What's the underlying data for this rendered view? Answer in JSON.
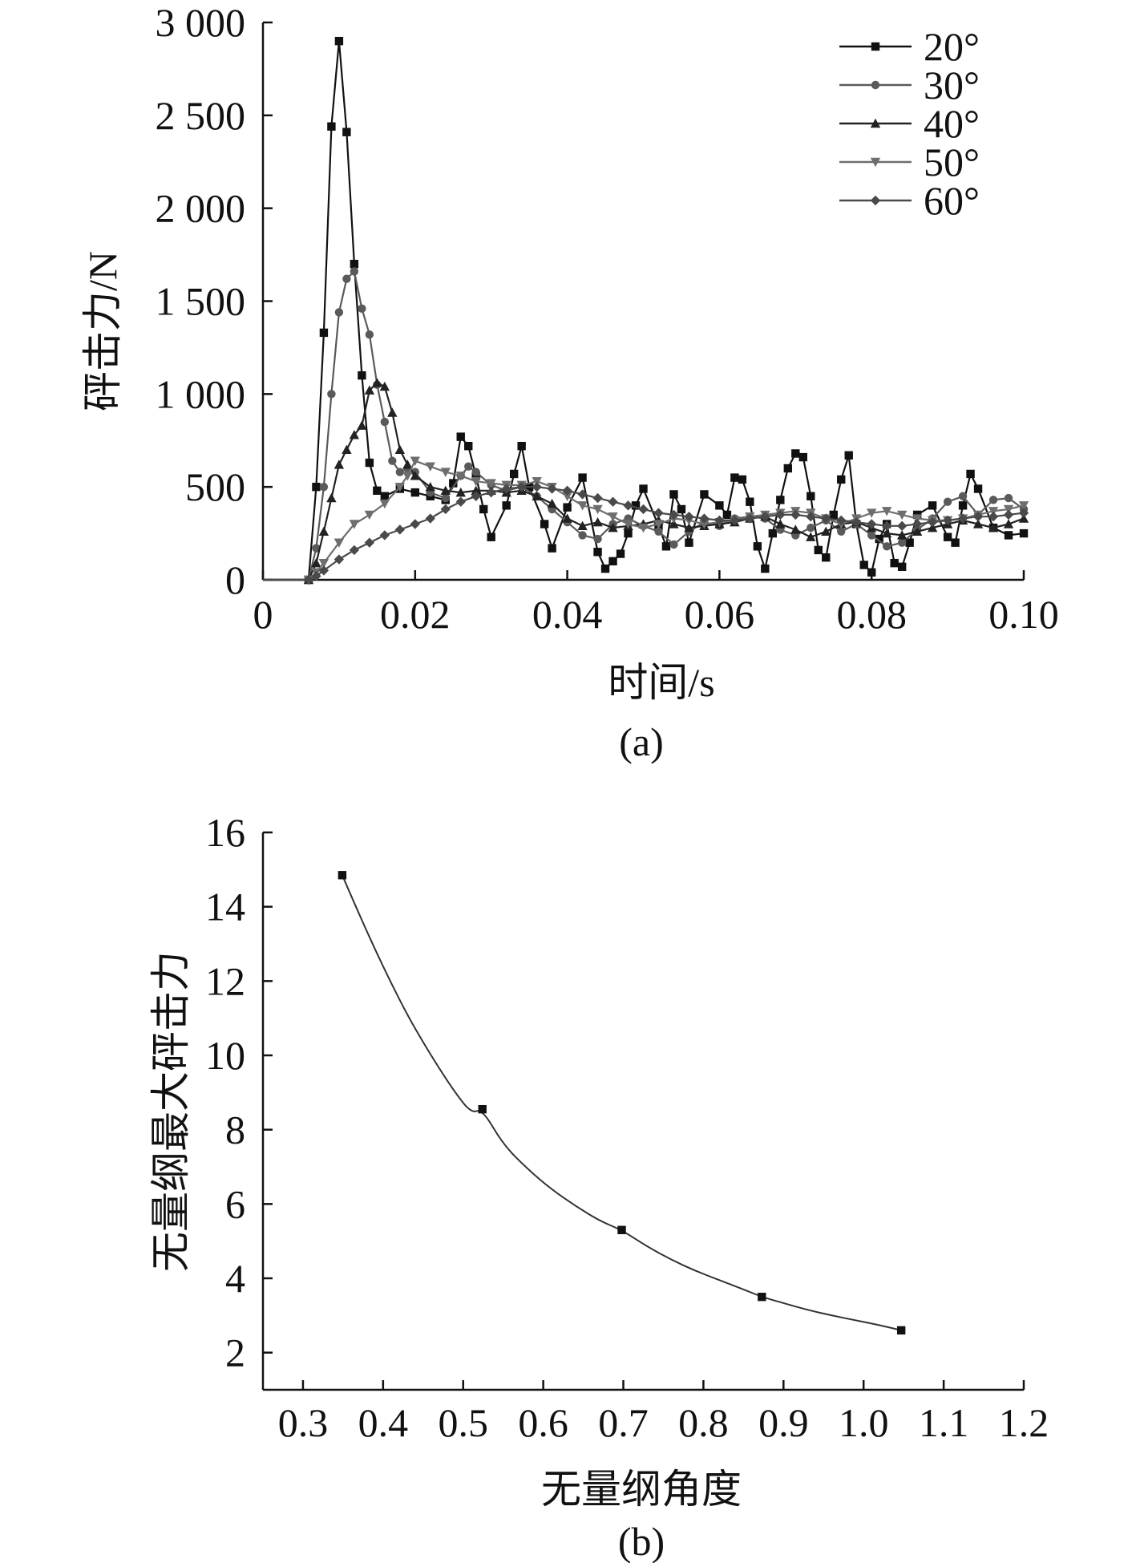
{
  "figure": {
    "panels": [
      {
        "id": "a",
        "panel_label": "(a)",
        "chart_data": {
          "type": "line",
          "xlabel": "时间/s",
          "ylabel": "砰击力/N",
          "xlim": [
            0,
            0.1
          ],
          "ylim": [
            0,
            3000
          ],
          "x_ticks": [
            "0",
            "0.02",
            "0.04",
            "0.06",
            "0.08",
            "0.10"
          ],
          "x_tick_values": [
            0,
            0.02,
            0.04,
            0.06,
            0.08,
            0.1
          ],
          "y_ticks": [
            "0",
            "500",
            "1 000",
            "1 500",
            "2 000",
            "2 500",
            "3 000"
          ],
          "y_tick_values": [
            0,
            500,
            1000,
            1500,
            2000,
            2500,
            3000
          ],
          "grid": false,
          "legend_position": "top-right",
          "series": [
            {
              "name": "20°",
              "marker": "square",
              "color": "#111111",
              "x": [
                0,
                0.002,
                0.004,
                0.006,
                0.007,
                0.008,
                0.009,
                0.01,
                0.011,
                0.012,
                0.013,
                0.014,
                0.015,
                0.016,
                0.018,
                0.02,
                0.022,
                0.024,
                0.025,
                0.026,
                0.027,
                0.028,
                0.029,
                0.03,
                0.032,
                0.033,
                0.034,
                0.035,
                0.037,
                0.038,
                0.04,
                0.042,
                0.044,
                0.045,
                0.046,
                0.047,
                0.048,
                0.049,
                0.05,
                0.052,
                0.053,
                0.054,
                0.055,
                0.056,
                0.058,
                0.06,
                0.061,
                0.062,
                0.063,
                0.064,
                0.065,
                0.066,
                0.067,
                0.068,
                0.069,
                0.07,
                0.071,
                0.072,
                0.073,
                0.074,
                0.075,
                0.076,
                0.077,
                0.078,
                0.079,
                0.08,
                0.081,
                0.082,
                0.083,
                0.084,
                0.085,
                0.086,
                0.088,
                0.09,
                0.091,
                0.092,
                0.093,
                0.094,
                0.096,
                0.098,
                0.1
              ],
              "y": [
                0,
                0,
                0,
                0,
                500,
                1330,
                2440,
                2900,
                2410,
                1700,
                1100,
                630,
                480,
                450,
                490,
                470,
                450,
                430,
                520,
                770,
                720,
                560,
                380,
                230,
                400,
                570,
                720,
                500,
                300,
                170,
                390,
                550,
                150,
                60,
                100,
                140,
                250,
                400,
                490,
                290,
                180,
                460,
                380,
                200,
                460,
                400,
                350,
                550,
                540,
                420,
                180,
                60,
                250,
                430,
                600,
                680,
                660,
                450,
                160,
                120,
                350,
                540,
                670,
                300,
                80,
                40,
                220,
                300,
                90,
                70,
                200,
                350,
                400,
                230,
                200,
                400,
                570,
                490,
                280,
                240,
                250
              ]
            },
            {
              "name": "30°",
              "marker": "circle",
              "color": "#5a5a5a",
              "x": [
                0,
                0.002,
                0.004,
                0.006,
                0.007,
                0.008,
                0.009,
                0.01,
                0.011,
                0.012,
                0.013,
                0.014,
                0.015,
                0.016,
                0.017,
                0.018,
                0.019,
                0.02,
                0.022,
                0.024,
                0.026,
                0.027,
                0.028,
                0.03,
                0.032,
                0.034,
                0.036,
                0.038,
                0.04,
                0.042,
                0.044,
                0.046,
                0.048,
                0.05,
                0.052,
                0.054,
                0.056,
                0.058,
                0.06,
                0.062,
                0.064,
                0.066,
                0.068,
                0.07,
                0.072,
                0.074,
                0.076,
                0.078,
                0.08,
                0.082,
                0.084,
                0.086,
                0.088,
                0.09,
                0.092,
                0.094,
                0.096,
                0.098,
                0.1
              ],
              "y": [
                0,
                0,
                0,
                0,
                170,
                500,
                1000,
                1440,
                1620,
                1660,
                1460,
                1320,
                1050,
                850,
                640,
                580,
                600,
                580,
                470,
                440,
                560,
                610,
                580,
                510,
                480,
                500,
                450,
                380,
                310,
                240,
                220,
                300,
                330,
                290,
                260,
                190,
                260,
                310,
                290,
                330,
                340,
                330,
                270,
                240,
                280,
                320,
                260,
                300,
                240,
                180,
                200,
                270,
                330,
                420,
                450,
                350,
                430,
                440,
                380
              ]
            },
            {
              "name": "40°",
              "marker": "triangle-up",
              "color": "#222222",
              "x": [
                0,
                0.002,
                0.004,
                0.006,
                0.007,
                0.008,
                0.009,
                0.01,
                0.011,
                0.012,
                0.013,
                0.014,
                0.015,
                0.016,
                0.017,
                0.018,
                0.019,
                0.02,
                0.022,
                0.024,
                0.026,
                0.028,
                0.03,
                0.032,
                0.034,
                0.036,
                0.038,
                0.04,
                0.042,
                0.044,
                0.046,
                0.048,
                0.05,
                0.052,
                0.054,
                0.056,
                0.058,
                0.06,
                0.062,
                0.064,
                0.066,
                0.068,
                0.07,
                0.072,
                0.074,
                0.076,
                0.078,
                0.08,
                0.082,
                0.084,
                0.086,
                0.088,
                0.09,
                0.092,
                0.094,
                0.096,
                0.098,
                0.1
              ],
              "y": [
                0,
                0,
                0,
                0,
                90,
                260,
                440,
                620,
                700,
                780,
                830,
                1020,
                1060,
                1040,
                900,
                700,
                620,
                560,
                500,
                480,
                470,
                480,
                480,
                470,
                480,
                450,
                410,
                330,
                290,
                310,
                280,
                290,
                300,
                320,
                300,
                280,
                290,
                300,
                310,
                330,
                340,
                300,
                270,
                230,
                260,
                300,
                310,
                280,
                250,
                240,
                260,
                280,
                300,
                320,
                300,
                280,
                300,
                330
              ]
            },
            {
              "name": "50°",
              "marker": "triangle-down",
              "color": "#6e6e6e",
              "x": [
                0,
                0.002,
                0.004,
                0.006,
                0.007,
                0.008,
                0.01,
                0.012,
                0.014,
                0.016,
                0.018,
                0.019,
                0.02,
                0.022,
                0.024,
                0.026,
                0.028,
                0.03,
                0.032,
                0.034,
                0.036,
                0.038,
                0.04,
                0.042,
                0.044,
                0.046,
                0.048,
                0.05,
                0.052,
                0.054,
                0.056,
                0.058,
                0.06,
                0.062,
                0.064,
                0.066,
                0.068,
                0.07,
                0.072,
                0.074,
                0.076,
                0.078,
                0.08,
                0.082,
                0.084,
                0.086,
                0.088,
                0.09,
                0.092,
                0.094,
                0.096,
                0.098,
                0.1
              ],
              "y": [
                0,
                0,
                0,
                0,
                40,
                90,
                200,
                300,
                350,
                410,
                500,
                560,
                640,
                610,
                580,
                560,
                530,
                520,
                510,
                510,
                530,
                500,
                450,
                400,
                380,
                340,
                300,
                280,
                300,
                330,
                320,
                300,
                310,
                320,
                340,
                350,
                360,
                370,
                360,
                330,
                300,
                330,
                360,
                370,
                350,
                330,
                320,
                320,
                330,
                350,
                370,
                380,
                400
              ]
            },
            {
              "name": "60°",
              "marker": "diamond",
              "color": "#4a4a4a",
              "x": [
                0,
                0.002,
                0.004,
                0.006,
                0.007,
                0.008,
                0.01,
                0.012,
                0.014,
                0.016,
                0.018,
                0.02,
                0.022,
                0.024,
                0.026,
                0.028,
                0.03,
                0.032,
                0.034,
                0.036,
                0.038,
                0.04,
                0.042,
                0.044,
                0.046,
                0.048,
                0.05,
                0.052,
                0.054,
                0.056,
                0.058,
                0.06,
                0.062,
                0.064,
                0.066,
                0.068,
                0.07,
                0.072,
                0.074,
                0.076,
                0.078,
                0.08,
                0.082,
                0.084,
                0.086,
                0.088,
                0.09,
                0.092,
                0.094,
                0.096,
                0.098,
                0.1
              ],
              "y": [
                0,
                0,
                0,
                0,
                20,
                50,
                110,
                160,
                200,
                240,
                270,
                300,
                330,
                380,
                420,
                450,
                470,
                490,
                500,
                500,
                490,
                480,
                460,
                440,
                420,
                400,
                380,
                360,
                350,
                340,
                330,
                320,
                320,
                330,
                340,
                350,
                350,
                340,
                330,
                320,
                310,
                300,
                290,
                290,
                300,
                310,
                320,
                330,
                340,
                340,
                350,
                360
              ]
            }
          ]
        }
      },
      {
        "id": "b",
        "panel_label": "(b)",
        "chart_data": {
          "type": "scatter",
          "xlabel": "无量纲角度",
          "ylabel": "无量纲最大砰击力",
          "xlim": [
            0.25,
            1.2
          ],
          "ylim": [
            1,
            16
          ],
          "x_ticks": [
            "0.3",
            "0.4",
            "0.5",
            "0.6",
            "0.7",
            "0.8",
            "0.9",
            "1.0",
            "1.1",
            "1.2"
          ],
          "x_tick_values": [
            0.3,
            0.4,
            0.5,
            0.6,
            0.7,
            0.8,
            0.9,
            1.0,
            1.1,
            1.2
          ],
          "y_ticks": [
            "2",
            "4",
            "6",
            "8",
            "10",
            "12",
            "14",
            "16"
          ],
          "y_tick_values": [
            2,
            4,
            6,
            8,
            10,
            12,
            14,
            16
          ],
          "grid": false,
          "series": [
            {
              "marker": "square",
              "color": "#111111",
              "x": [
                0.349,
                0.524,
                0.698,
                0.873,
                1.047
              ],
              "y": [
                14.85,
                8.55,
                5.3,
                3.5,
                2.6
              ]
            }
          ],
          "fit_curve": {
            "color": "#333333",
            "x": [
              0.349,
              0.37,
              0.39,
              0.41,
              0.43,
              0.45,
              0.47,
              0.49,
              0.51,
              0.524,
              0.55,
              0.58,
              0.61,
              0.64,
              0.67,
              0.698,
              0.73,
              0.76,
              0.79,
              0.82,
              0.85,
              0.873,
              0.9,
              0.93,
              0.96,
              0.99,
              1.02,
              1.047
            ],
            "y": [
              14.85,
              13.8,
              12.85,
              11.95,
              11.1,
              10.35,
              9.65,
              9.0,
              8.45,
              8.55,
              7.6,
              6.95,
              6.4,
              5.95,
              5.55,
              5.3,
              4.85,
              4.5,
              4.2,
              3.95,
              3.7,
              3.5,
              3.33,
              3.15,
              3.0,
              2.87,
              2.74,
              2.6
            ]
          }
        }
      }
    ]
  }
}
